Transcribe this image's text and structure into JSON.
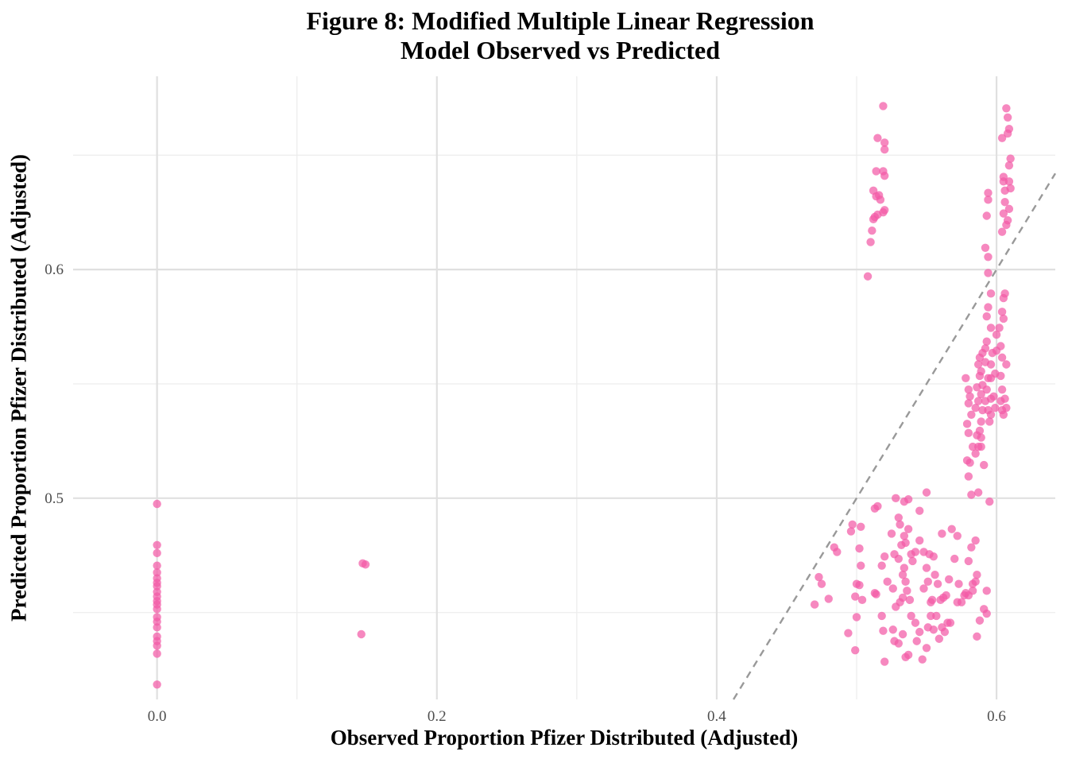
{
  "chart_data": {
    "type": "scatter",
    "title": "Figure 8: Modified Multiple Linear Regression\nModel Observed vs Predicted",
    "xlabel": "Observed Proportion Pfizer Distributed (Adjusted)",
    "ylabel": "Predicted Proportion Pfizer Distributed (Adjusted)",
    "xlim": [
      -0.06,
      0.642
    ],
    "ylim": [
      0.412,
      0.6845
    ],
    "x_ticks": [
      0.0,
      0.2,
      0.4,
      0.6
    ],
    "x_tick_labels": [
      "0.0",
      "0.2",
      "0.4",
      "0.6"
    ],
    "y_ticks": [
      0.5,
      0.6
    ],
    "y_tick_labels": [
      "0.5",
      "0.6"
    ],
    "grid": true,
    "reference_line": {
      "type": "y=x",
      "style": "dashed",
      "color": "#999999"
    },
    "point_color": "#f25aa6",
    "series": [
      {
        "values": [
          [
            0.0,
            0.4975
          ],
          [
            0.0,
            0.4795
          ],
          [
            0.0,
            0.476
          ],
          [
            0.0,
            0.4705
          ],
          [
            0.0,
            0.4675
          ],
          [
            0.0,
            0.465
          ],
          [
            0.0,
            0.463
          ],
          [
            0.0,
            0.4615
          ],
          [
            0.0,
            0.459
          ],
          [
            0.0,
            0.457
          ],
          [
            0.0,
            0.455
          ],
          [
            0.0,
            0.4535
          ],
          [
            0.0,
            0.4515
          ],
          [
            0.0,
            0.448
          ],
          [
            0.0,
            0.446
          ],
          [
            0.0,
            0.4435
          ],
          [
            0.0,
            0.4395
          ],
          [
            0.0,
            0.4375
          ],
          [
            0.0,
            0.4355
          ],
          [
            0.0,
            0.432
          ],
          [
            0.0,
            0.4185
          ],
          [
            0.147,
            0.4715
          ],
          [
            0.149,
            0.471
          ],
          [
            0.146,
            0.4405
          ],
          [
            0.508,
            0.597
          ],
          [
            0.51,
            0.612
          ],
          [
            0.511,
            0.617
          ],
          [
            0.512,
            0.622
          ],
          [
            0.513,
            0.623
          ],
          [
            0.512,
            0.6345
          ],
          [
            0.514,
            0.632
          ],
          [
            0.516,
            0.6325
          ],
          [
            0.517,
            0.6305
          ],
          [
            0.515,
            0.624
          ],
          [
            0.519,
            0.625
          ],
          [
            0.52,
            0.626
          ],
          [
            0.514,
            0.643
          ],
          [
            0.519,
            0.643
          ],
          [
            0.52,
            0.641
          ],
          [
            0.515,
            0.6575
          ],
          [
            0.52,
            0.6555
          ],
          [
            0.52,
            0.6525
          ],
          [
            0.519,
            0.6715
          ],
          [
            0.473,
            0.4655
          ],
          [
            0.475,
            0.4625
          ],
          [
            0.47,
            0.4535
          ],
          [
            0.484,
            0.4785
          ],
          [
            0.486,
            0.4765
          ],
          [
            0.48,
            0.456
          ],
          [
            0.497,
            0.4885
          ],
          [
            0.496,
            0.4855
          ],
          [
            0.503,
            0.4875
          ],
          [
            0.513,
            0.4955
          ],
          [
            0.515,
            0.4965
          ],
          [
            0.502,
            0.478
          ],
          [
            0.5,
            0.4625
          ],
          [
            0.502,
            0.462
          ],
          [
            0.503,
            0.4705
          ],
          [
            0.499,
            0.457
          ],
          [
            0.504,
            0.4555
          ],
          [
            0.5,
            0.448
          ],
          [
            0.499,
            0.4335
          ],
          [
            0.494,
            0.441
          ],
          [
            0.513,
            0.4585
          ],
          [
            0.514,
            0.458
          ],
          [
            0.518,
            0.4485
          ],
          [
            0.525,
            0.4845
          ],
          [
            0.528,
            0.5
          ],
          [
            0.53,
            0.4915
          ],
          [
            0.534,
            0.4985
          ],
          [
            0.537,
            0.4995
          ],
          [
            0.519,
            0.442
          ],
          [
            0.52,
            0.4285
          ],
          [
            0.518,
            0.4705
          ],
          [
            0.52,
            0.4745
          ],
          [
            0.527,
            0.4755
          ],
          [
            0.532,
            0.4795
          ],
          [
            0.535,
            0.4805
          ],
          [
            0.534,
            0.4835
          ],
          [
            0.537,
            0.4865
          ],
          [
            0.531,
            0.4885
          ],
          [
            0.53,
            0.4735
          ],
          [
            0.534,
            0.4695
          ],
          [
            0.539,
            0.4755
          ],
          [
            0.542,
            0.4765
          ],
          [
            0.54,
            0.4725
          ],
          [
            0.522,
            0.4635
          ],
          [
            0.526,
            0.4605
          ],
          [
            0.531,
            0.4545
          ],
          [
            0.533,
            0.4565
          ],
          [
            0.535,
            0.4635
          ],
          [
            0.533,
            0.4665
          ],
          [
            0.536,
            0.4595
          ],
          [
            0.538,
            0.4555
          ],
          [
            0.528,
            0.4525
          ],
          [
            0.526,
            0.4425
          ],
          [
            0.527,
            0.4375
          ],
          [
            0.53,
            0.4365
          ],
          [
            0.533,
            0.4405
          ],
          [
            0.535,
            0.4305
          ],
          [
            0.537,
            0.4315
          ],
          [
            0.539,
            0.4485
          ],
          [
            0.542,
            0.4455
          ],
          [
            0.543,
            0.4375
          ],
          [
            0.545,
            0.4415
          ],
          [
            0.547,
            0.4295
          ],
          [
            0.55,
            0.4345
          ],
          [
            0.551,
            0.4435
          ],
          [
            0.553,
            0.4485
          ],
          [
            0.555,
            0.4425
          ],
          [
            0.557,
            0.4485
          ],
          [
            0.559,
            0.4385
          ],
          [
            0.561,
            0.4435
          ],
          [
            0.563,
            0.4415
          ],
          [
            0.565,
            0.4455
          ],
          [
            0.567,
            0.4455
          ],
          [
            0.545,
            0.4815
          ],
          [
            0.548,
            0.4765
          ],
          [
            0.55,
            0.4695
          ],
          [
            0.552,
            0.4755
          ],
          [
            0.555,
            0.4745
          ],
          [
            0.556,
            0.4665
          ],
          [
            0.558,
            0.4625
          ],
          [
            0.56,
            0.4555
          ],
          [
            0.562,
            0.4565
          ],
          [
            0.564,
            0.4575
          ],
          [
            0.566,
            0.4645
          ],
          [
            0.568,
            0.4865
          ],
          [
            0.57,
            0.4735
          ],
          [
            0.573,
            0.4625
          ],
          [
            0.577,
            0.4575
          ],
          [
            0.58,
            0.4725
          ],
          [
            0.582,
            0.4785
          ],
          [
            0.585,
            0.4815
          ],
          [
            0.586,
            0.4665
          ],
          [
            0.572,
            0.4545
          ],
          [
            0.575,
            0.4545
          ],
          [
            0.578,
            0.4585
          ],
          [
            0.58,
            0.4575
          ],
          [
            0.583,
            0.4625
          ],
          [
            0.588,
            0.4465
          ],
          [
            0.586,
            0.4395
          ],
          [
            0.593,
            0.4595
          ],
          [
            0.593,
            0.4495
          ],
          [
            0.591,
            0.4515
          ],
          [
            0.55,
            0.5025
          ],
          [
            0.545,
            0.4945
          ],
          [
            0.554,
            0.4555
          ],
          [
            0.553,
            0.4545
          ],
          [
            0.548,
            0.4605
          ],
          [
            0.551,
            0.4635
          ],
          [
            0.561,
            0.4845
          ],
          [
            0.572,
            0.4835
          ],
          [
            0.583,
            0.4595
          ],
          [
            0.585,
            0.4635
          ],
          [
            0.587,
            0.5025
          ],
          [
            0.595,
            0.4985
          ],
          [
            0.578,
            0.5525
          ],
          [
            0.58,
            0.5475
          ],
          [
            0.581,
            0.5445
          ],
          [
            0.58,
            0.5415
          ],
          [
            0.582,
            0.5365
          ],
          [
            0.579,
            0.5325
          ],
          [
            0.58,
            0.5285
          ],
          [
            0.583,
            0.5225
          ],
          [
            0.581,
            0.5155
          ],
          [
            0.579,
            0.5165
          ],
          [
            0.58,
            0.5095
          ],
          [
            0.582,
            0.5015
          ],
          [
            0.585,
            0.5195
          ],
          [
            0.587,
            0.5225
          ],
          [
            0.586,
            0.5275
          ],
          [
            0.588,
            0.5295
          ],
          [
            0.585,
            0.5395
          ],
          [
            0.587,
            0.5425
          ],
          [
            0.589,
            0.5455
          ],
          [
            0.586,
            0.5485
          ],
          [
            0.588,
            0.5535
          ],
          [
            0.587,
            0.5585
          ],
          [
            0.588,
            0.5615
          ],
          [
            0.59,
            0.5635
          ],
          [
            0.589,
            0.5555
          ],
          [
            0.59,
            0.5495
          ],
          [
            0.59,
            0.5385
          ],
          [
            0.589,
            0.5335
          ],
          [
            0.589,
            0.5265
          ],
          [
            0.589,
            0.5225
          ],
          [
            0.591,
            0.5145
          ],
          [
            0.592,
            0.5655
          ],
          [
            0.593,
            0.5685
          ],
          [
            0.592,
            0.5595
          ],
          [
            0.594,
            0.5525
          ],
          [
            0.593,
            0.5475
          ],
          [
            0.592,
            0.5425
          ],
          [
            0.594,
            0.5385
          ],
          [
            0.595,
            0.5335
          ],
          [
            0.596,
            0.5365
          ],
          [
            0.596,
            0.5435
          ],
          [
            0.596,
            0.5525
          ],
          [
            0.596,
            0.5585
          ],
          [
            0.597,
            0.5635
          ],
          [
            0.596,
            0.5745
          ],
          [
            0.593,
            0.5795
          ],
          [
            0.594,
            0.5835
          ],
          [
            0.596,
            0.5895
          ],
          [
            0.594,
            0.5985
          ],
          [
            0.594,
            0.6055
          ],
          [
            0.592,
            0.6095
          ],
          [
            0.593,
            0.6235
          ],
          [
            0.594,
            0.6305
          ],
          [
            0.594,
            0.6335
          ],
          [
            0.6,
            0.5645
          ],
          [
            0.599,
            0.5545
          ],
          [
            0.598,
            0.5445
          ],
          [
            0.599,
            0.5395
          ],
          [
            0.6,
            0.5715
          ],
          [
            0.602,
            0.5745
          ],
          [
            0.603,
            0.5665
          ],
          [
            0.604,
            0.5615
          ],
          [
            0.603,
            0.5535
          ],
          [
            0.604,
            0.5475
          ],
          [
            0.603,
            0.5425
          ],
          [
            0.604,
            0.5385
          ],
          [
            0.605,
            0.5365
          ],
          [
            0.604,
            0.5815
          ],
          [
            0.605,
            0.5785
          ],
          [
            0.605,
            0.5875
          ],
          [
            0.606,
            0.5895
          ],
          [
            0.604,
            0.6165
          ],
          [
            0.605,
            0.6245
          ],
          [
            0.606,
            0.6295
          ],
          [
            0.606,
            0.6345
          ],
          [
            0.605,
            0.6385
          ],
          [
            0.607,
            0.6195
          ],
          [
            0.608,
            0.6215
          ],
          [
            0.609,
            0.6265
          ],
          [
            0.61,
            0.6355
          ],
          [
            0.609,
            0.6385
          ],
          [
            0.61,
            0.6485
          ],
          [
            0.609,
            0.6455
          ],
          [
            0.608,
            0.6595
          ],
          [
            0.609,
            0.6615
          ],
          [
            0.608,
            0.6665
          ],
          [
            0.607,
            0.6705
          ],
          [
            0.604,
            0.6575
          ],
          [
            0.605,
            0.6405
          ],
          [
            0.607,
            0.5585
          ],
          [
            0.606,
            0.5435
          ],
          [
            0.607,
            0.5395
          ]
        ]
      }
    ]
  }
}
